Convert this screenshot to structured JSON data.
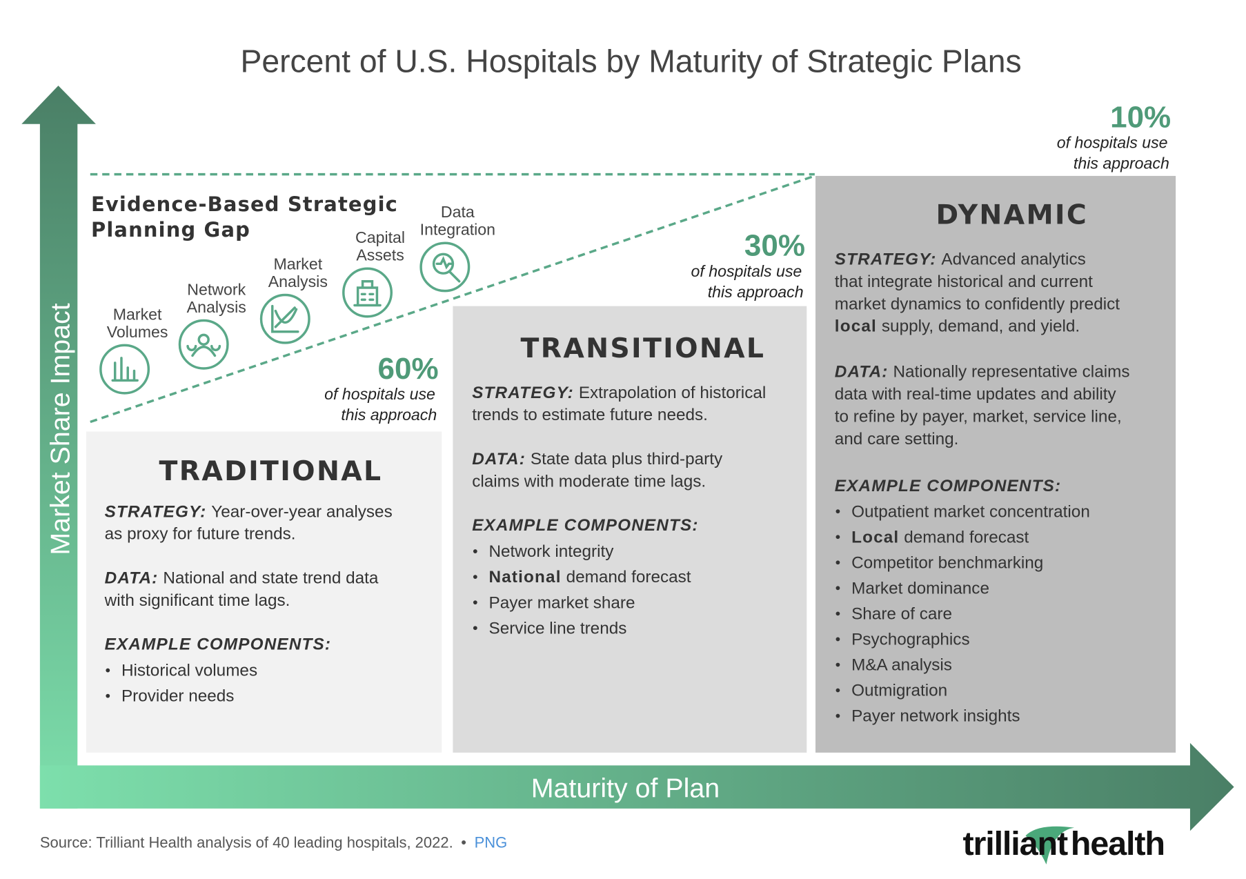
{
  "title": "Percent of U.S. Hospitals by Maturity of Strategic Plans",
  "axes": {
    "y_label": "Market Share Impact",
    "x_label": "Maturity of Plan"
  },
  "gap": {
    "title": [
      "Evidence-Based Strategic",
      "Planning Gap"
    ],
    "icons": [
      {
        "label": [
          "Market",
          "Volumes"
        ]
      },
      {
        "label": [
          "Network",
          "Analysis"
        ]
      },
      {
        "label": [
          "Market",
          "Analysis"
        ]
      },
      {
        "label": [
          "Capital",
          "Assets"
        ]
      },
      {
        "label": [
          "Data",
          "Integration"
        ]
      }
    ]
  },
  "stats": [
    {
      "value": "60%",
      "lines": [
        "of hospitals use",
        "this approach"
      ]
    },
    {
      "value": "30%",
      "lines": [
        "of hospitals use",
        "this approach"
      ]
    },
    {
      "value": "10%",
      "lines": [
        "of hospitals use",
        "this approach"
      ]
    }
  ],
  "boxes": [
    {
      "heading": "TRADITIONAL",
      "strategy": {
        "label": "STRATEGY:",
        "lines": [
          "Year-over-year analyses",
          "as proxy for future trends."
        ]
      },
      "data": {
        "label": "DATA:",
        "lines": [
          "National and state trend data",
          "with significant time lags."
        ]
      },
      "components": {
        "label": "EXAMPLE COMPONENTS:",
        "items": [
          "Historical volumes",
          "Provider needs"
        ]
      }
    },
    {
      "heading": "TRANSITIONAL",
      "strategy": {
        "label": "STRATEGY:",
        "lines": [
          "Extrapolation of historical",
          "trends to estimate future needs."
        ]
      },
      "data": {
        "label": "DATA:",
        "lines": [
          "State data plus third-party",
          "claims with moderate time lags."
        ]
      },
      "components": {
        "label": "EXAMPLE COMPONENTS:",
        "items": [
          "Network integrity",
          {
            "bold": "National",
            "rest": "demand forecast"
          },
          "Payer market share",
          "Service line trends"
        ]
      }
    },
    {
      "heading": "DYNAMIC",
      "strategy": {
        "label": "STRATEGY:",
        "lines": [
          "Advanced analytics",
          "that integrate historical and current",
          "market dynamics to confidently predict",
          {
            "bold": "local",
            "rest": "supply, demand, and yield."
          }
        ]
      },
      "data": {
        "label": "DATA:",
        "lines": [
          "Nationally representative claims",
          "data with real-time updates and ability",
          "to refine by payer, market, service line,",
          "and care setting."
        ]
      },
      "components": {
        "label": "EXAMPLE COMPONENTS:",
        "items": [
          "Outpatient market concentration",
          {
            "bold": "Local",
            "rest": "demand forecast"
          },
          "Competitor benchmarking",
          "Market dominance",
          "Share of care",
          "Psychographics",
          "M&A analysis",
          "Outmigration",
          "Payer network insights"
        ]
      }
    }
  ],
  "footer": {
    "source": "Source: Trilliant Health analysis of 40 leading hospitals, 2022.",
    "separator": "•",
    "link": "PNG"
  },
  "logo": {
    "part1": "trilliant",
    "part2": "health"
  }
}
